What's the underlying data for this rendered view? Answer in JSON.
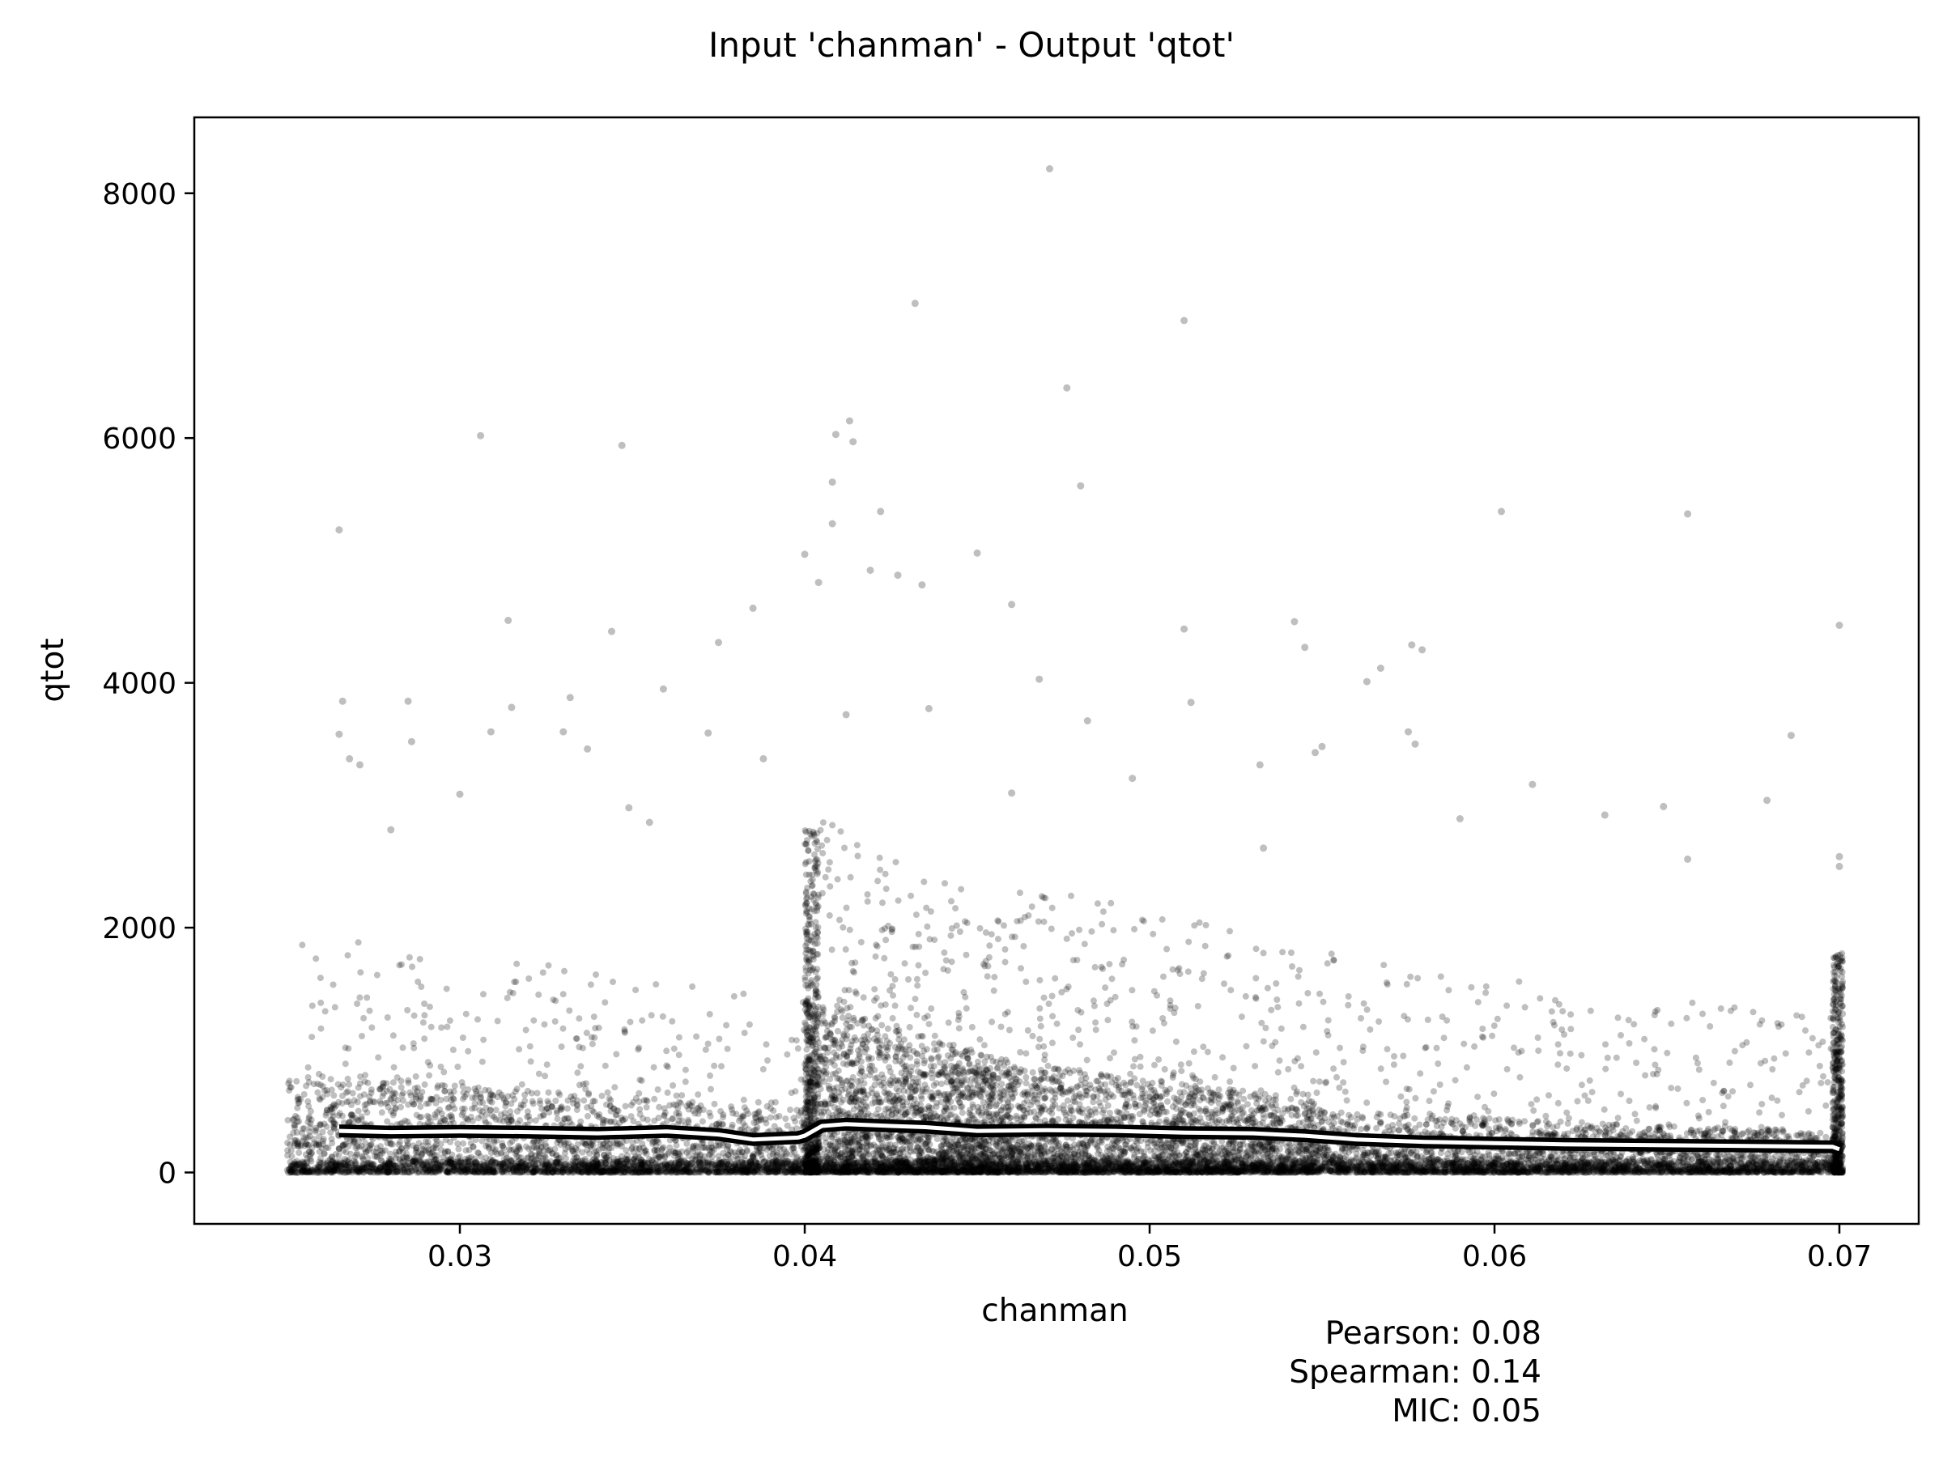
{
  "chart_data": {
    "type": "scatter",
    "title": "Input 'chanman' - Output 'qtot'",
    "xlabel": "chanman",
    "ylabel": "qtot",
    "xlim": [
      0.0223,
      0.0723
    ],
    "ylim": [
      -420,
      8620
    ],
    "x_ticks": [
      0.03,
      0.04,
      0.05,
      0.06,
      0.07
    ],
    "x_tick_labels": [
      "0.03",
      "0.04",
      "0.05",
      "0.06",
      "0.07"
    ],
    "y_ticks": [
      0,
      2000,
      4000,
      6000,
      8000
    ],
    "y_tick_labels": [
      "0",
      "2000",
      "4000",
      "6000",
      "8000"
    ],
    "grid": false,
    "series": [
      {
        "marker_color": "#000000",
        "marker_alpha": 0.25,
        "outliers": [
          [
            0.0471,
            8200
          ],
          [
            0.0432,
            7100
          ],
          [
            0.051,
            6960
          ],
          [
            0.0476,
            6410
          ],
          [
            0.0413,
            6140
          ],
          [
            0.0409,
            6030
          ],
          [
            0.0414,
            5970
          ],
          [
            0.0306,
            6020
          ],
          [
            0.0347,
            5940
          ],
          [
            0.0408,
            5640
          ],
          [
            0.048,
            5610
          ],
          [
            0.0408,
            5300
          ],
          [
            0.0422,
            5400
          ],
          [
            0.0602,
            5400
          ],
          [
            0.0656,
            5380
          ],
          [
            0.0265,
            5250
          ],
          [
            0.04,
            5050
          ],
          [
            0.045,
            5060
          ],
          [
            0.0404,
            4820
          ],
          [
            0.0419,
            4920
          ],
          [
            0.0427,
            4880
          ],
          [
            0.0434,
            4800
          ],
          [
            0.046,
            4640
          ],
          [
            0.0385,
            4610
          ],
          [
            0.0314,
            4510
          ],
          [
            0.0542,
            4500
          ],
          [
            0.07,
            4470
          ],
          [
            0.0344,
            4420
          ],
          [
            0.051,
            4440
          ],
          [
            0.0545,
            4290
          ],
          [
            0.0375,
            4330
          ],
          [
            0.0576,
            4310
          ],
          [
            0.0579,
            4270
          ],
          [
            0.0468,
            4030
          ],
          [
            0.0563,
            4010
          ],
          [
            0.0567,
            4120
          ],
          [
            0.0359,
            3950
          ],
          [
            0.0266,
            3850
          ],
          [
            0.0285,
            3850
          ],
          [
            0.0332,
            3880
          ],
          [
            0.0512,
            3840
          ],
          [
            0.0315,
            3800
          ],
          [
            0.0482,
            3690
          ],
          [
            0.0436,
            3790
          ],
          [
            0.0412,
            3740
          ],
          [
            0.0575,
            3600
          ],
          [
            0.0577,
            3500
          ],
          [
            0.0686,
            3570
          ],
          [
            0.0265,
            3580
          ],
          [
            0.0309,
            3600
          ],
          [
            0.033,
            3600
          ],
          [
            0.0372,
            3590
          ],
          [
            0.0286,
            3520
          ],
          [
            0.0337,
            3460
          ],
          [
            0.0268,
            3380
          ],
          [
            0.0271,
            3330
          ],
          [
            0.0388,
            3380
          ],
          [
            0.0532,
            3330
          ],
          [
            0.0548,
            3430
          ],
          [
            0.055,
            3480
          ],
          [
            0.0611,
            3170
          ],
          [
            0.0649,
            2990
          ],
          [
            0.0679,
            3040
          ],
          [
            0.07,
            2580
          ],
          [
            0.07,
            2500
          ],
          [
            0.0656,
            2560
          ],
          [
            0.0632,
            2920
          ],
          [
            0.059,
            2890
          ],
          [
            0.0533,
            2650
          ],
          [
            0.046,
            3100
          ],
          [
            0.0495,
            3220
          ],
          [
            0.03,
            3090
          ],
          [
            0.0349,
            2980
          ],
          [
            0.028,
            2800
          ],
          [
            0.0355,
            2860
          ]
        ],
        "density_bands": [
          {
            "x0": 0.025,
            "x1": 0.04,
            "y_dense_max": 800,
            "y_scatter_max": 2000
          },
          {
            "x0": 0.04,
            "x1": 0.046,
            "y_dense_max": 1400,
            "y_scatter_max": 3000
          },
          {
            "x0": 0.046,
            "x1": 0.055,
            "y_dense_max": 900,
            "y_scatter_max": 2500
          },
          {
            "x0": 0.055,
            "x1": 0.07,
            "y_dense_max": 500,
            "y_scatter_max": 1800
          }
        ]
      }
    ],
    "trend_line": {
      "color": "#ffffff",
      "outline_color": "#000000",
      "points": [
        [
          0.0265,
          340
        ],
        [
          0.028,
          330
        ],
        [
          0.03,
          335
        ],
        [
          0.032,
          330
        ],
        [
          0.034,
          320
        ],
        [
          0.036,
          335
        ],
        [
          0.0375,
          310
        ],
        [
          0.0385,
          270
        ],
        [
          0.0398,
          285
        ],
        [
          0.04,
          300
        ],
        [
          0.0405,
          380
        ],
        [
          0.0412,
          395
        ],
        [
          0.0425,
          380
        ],
        [
          0.0435,
          370
        ],
        [
          0.045,
          340
        ],
        [
          0.047,
          345
        ],
        [
          0.049,
          340
        ],
        [
          0.051,
          325
        ],
        [
          0.053,
          320
        ],
        [
          0.0545,
          300
        ],
        [
          0.056,
          270
        ],
        [
          0.058,
          250
        ],
        [
          0.06,
          240
        ],
        [
          0.062,
          230
        ],
        [
          0.064,
          225
        ],
        [
          0.066,
          220
        ],
        [
          0.068,
          215
        ],
        [
          0.0698,
          210
        ],
        [
          0.07,
          190
        ]
      ]
    }
  },
  "stats": {
    "pearson": "Pearson: 0.08",
    "spearman": "Spearman: 0.14",
    "mic": "MIC: 0.05"
  }
}
